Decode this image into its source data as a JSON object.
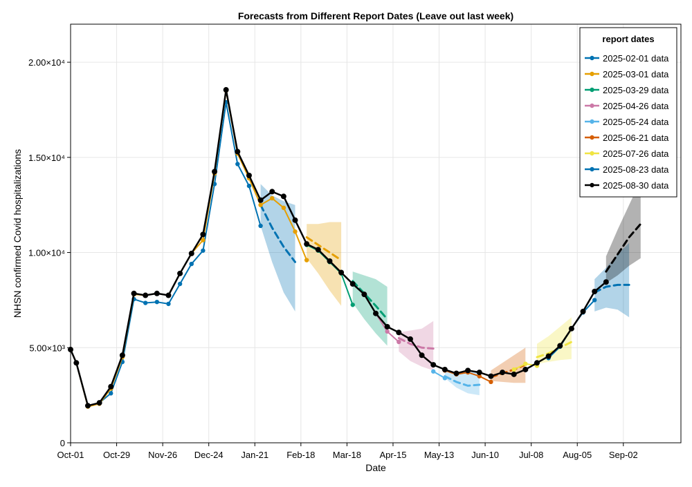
{
  "chart_data": {
    "type": "line",
    "title": "Forecasts from Different Report Dates (Leave out last week)",
    "xlabel": "Date",
    "ylabel": "NHSN confirmed Covid hospitalizations",
    "xlim": [
      0,
      53
    ],
    "ylim": [
      0,
      22000
    ],
    "x_ticks": [
      {
        "label": "Oct-01",
        "x": 0
      },
      {
        "label": "Oct-29",
        "x": 4
      },
      {
        "label": "Nov-26",
        "x": 8
      },
      {
        "label": "Dec-24",
        "x": 12
      },
      {
        "label": "Jan-21",
        "x": 16
      },
      {
        "label": "Feb-18",
        "x": 20
      },
      {
        "label": "Mar-18",
        "x": 24
      },
      {
        "label": "Apr-15",
        "x": 28
      },
      {
        "label": "May-13",
        "x": 32
      },
      {
        "label": "Jun-10",
        "x": 36
      },
      {
        "label": "Jul-08",
        "x": 40
      },
      {
        "label": "Aug-05",
        "x": 44
      },
      {
        "label": "Sep-02",
        "x": 48
      }
    ],
    "y_ticks": [
      {
        "label": "0",
        "y": 0
      },
      {
        "label": "5.00×10³",
        "y": 5000
      },
      {
        "label": "1.00×10⁴",
        "y": 10000
      },
      {
        "label": "1.50×10⁴",
        "y": 15000
      },
      {
        "label": "2.00×10⁴",
        "y": 20000
      }
    ],
    "legend": {
      "title": "report dates",
      "placement": "top-right"
    },
    "series": [
      {
        "name": "2025-02-01 data",
        "color": "#0072B2",
        "x": [
          0,
          0.5,
          1.5,
          2.5,
          3.5,
          4.5,
          5.5,
          6.5,
          7.5,
          8.5,
          9.5,
          10.5,
          11.5,
          12.5,
          13.5,
          14.5,
          15.5,
          16.5
        ],
        "values": [
          4900,
          4200,
          1950,
          2100,
          2600,
          4250,
          7550,
          7350,
          7400,
          7300,
          8350,
          9400,
          10100,
          13600,
          17900,
          14650,
          13500,
          11400
        ],
        "forecast": {
          "x": [
            16.5,
            17.5,
            18.5,
            19.5
          ],
          "median": [
            12500,
            11300,
            10300,
            9500
          ],
          "lower": [
            11400,
            9500,
            7900,
            6900
          ],
          "upper": [
            13600,
            13000,
            12700,
            12500
          ]
        }
      },
      {
        "name": "2025-03-01 data",
        "color": "#E69F00",
        "x": [
          0,
          0.5,
          1.5,
          2.5,
          3.5,
          4.5,
          5.5,
          6.5,
          7.5,
          8.5,
          9.5,
          10.5,
          11.5,
          12.5,
          13.5,
          14.5,
          15.5,
          16.5,
          17.5,
          18.5,
          19.5,
          20.5
        ],
        "values": [
          4900,
          4200,
          1900,
          2050,
          2850,
          4500,
          7800,
          7750,
          7850,
          7750,
          8900,
          9950,
          10650,
          14150,
          18500,
          15200,
          13900,
          12500,
          12850,
          12350,
          11100,
          9600
        ],
        "forecast": {
          "x": [
            20.5,
            21.5,
            22.5,
            23.5
          ],
          "median": [
            10800,
            10400,
            10000,
            9600
          ],
          "lower": [
            9700,
            8900,
            8000,
            7200
          ],
          "upper": [
            11500,
            11500,
            11600,
            11600
          ]
        }
      },
      {
        "name": "2025-03-29 data",
        "color": "#009E73",
        "x": [
          20.5,
          21.5,
          22.5,
          23.5,
          24.5
        ],
        "values": [
          10400,
          10100,
          9500,
          8900,
          7250
        ],
        "forecast": {
          "x": [
            24.5,
            25.5,
            26.5,
            27.5
          ],
          "median": [
            8500,
            7850,
            7200,
            6500
          ],
          "lower": [
            7350,
            6500,
            5750,
            5100
          ],
          "upper": [
            9000,
            8800,
            8600,
            8200
          ]
        }
      },
      {
        "name": "2025-04-26 data",
        "color": "#CC79A7",
        "x": [
          26.5,
          27.5,
          28.5
        ],
        "values": [
          6800,
          5850,
          5300
        ],
        "forecast": {
          "x": [
            28.5,
            29.5,
            30.5,
            31.5
          ],
          "median": [
            5500,
            5200,
            5000,
            4950
          ],
          "lower": [
            4800,
            4300,
            4000,
            3800
          ],
          "upper": [
            5800,
            5900,
            6000,
            6400
          ]
        }
      },
      {
        "name": "2025-05-24 data",
        "color": "#56B4E9",
        "x": [
          31.5,
          32.5
        ],
        "values": [
          3750,
          3400
        ],
        "forecast": {
          "x": [
            32.5,
            33.5,
            34.5,
            35.5
          ],
          "median": [
            3500,
            3200,
            3000,
            3050
          ],
          "lower": [
            3400,
            2900,
            2600,
            2500
          ],
          "upper": [
            3800,
            3700,
            3700,
            3750
          ]
        }
      },
      {
        "name": "2025-06-21 data",
        "color": "#D55E00",
        "x": [
          32.5,
          33.5,
          34.5,
          35.5,
          36.5
        ],
        "values": [
          3800,
          3600,
          3700,
          3500,
          3200
        ],
        "forecast": {
          "x": [
            36.5,
            37.5,
            38.5,
            39.5
          ],
          "median": [
            3450,
            3650,
            3850,
            4100
          ],
          "lower": [
            3250,
            3200,
            3150,
            3150
          ],
          "upper": [
            3800,
            4200,
            4600,
            5000
          ]
        }
      },
      {
        "name": "2025-07-26 data",
        "color": "#F0E442",
        "x": [
          38.5,
          39.5,
          40.5
        ],
        "values": [
          3850,
          4150,
          4050
        ],
        "forecast": {
          "x": [
            40.5,
            41.5,
            42.5,
            43.5
          ],
          "median": [
            4500,
            4700,
            5000,
            5300
          ],
          "lower": [
            4150,
            4250,
            4350,
            4400
          ],
          "upper": [
            5200,
            5600,
            6100,
            6600
          ]
        }
      },
      {
        "name": "2025-08-23 data",
        "color": "#0072B2",
        "x": [
          41.5,
          42.5,
          43.5,
          44.5,
          45.5
        ],
        "values": [
          4450,
          5050,
          6000,
          6850,
          7500
        ],
        "forecast": {
          "x": [
            45.5,
            46.5,
            47.5,
            48.5
          ],
          "median": [
            7900,
            8200,
            8300,
            8300
          ],
          "lower": [
            6900,
            7100,
            7000,
            6600
          ],
          "upper": [
            8600,
            9200,
            9900,
            10500
          ]
        }
      },
      {
        "name": "2025-08-30 data",
        "color": "#000000",
        "x": [
          0,
          0.5,
          1.5,
          2.5,
          3.5,
          4.5,
          5.5,
          6.5,
          7.5,
          8.5,
          9.5,
          10.5,
          11.5,
          12.5,
          13.5,
          14.5,
          15.5,
          16.5,
          17.5,
          18.5,
          19.5,
          20.5,
          21.5,
          22.5,
          23.5,
          24.5,
          25.5,
          26.5,
          27.5,
          28.5,
          29.5,
          30.5,
          31.5,
          32.5,
          33.5,
          34.5,
          35.5,
          36.5,
          37.5,
          38.5,
          39.5,
          40.5,
          41.5,
          42.5,
          43.5,
          44.5,
          45.5,
          46.5
        ],
        "values": [
          4900,
          4200,
          1950,
          2100,
          2950,
          4600,
          7850,
          7750,
          7850,
          7750,
          8900,
          9950,
          10950,
          14250,
          18550,
          15300,
          14050,
          12750,
          13200,
          12950,
          11700,
          10450,
          10150,
          9550,
          8950,
          8350,
          7800,
          6800,
          6100,
          5800,
          5450,
          4600,
          4100,
          3850,
          3650,
          3800,
          3700,
          3500,
          3700,
          3600,
          3850,
          4200,
          4550,
          5100,
          6000,
          6900,
          7950,
          8450
        ],
        "forecast": {
          "x": [
            46.5,
            47.5,
            48.5,
            49.5
          ],
          "median": [
            9000,
            9900,
            10800,
            11500
          ],
          "lower": [
            8400,
            8800,
            9300,
            9700
          ],
          "upper": [
            9800,
            11200,
            12500,
            13800
          ]
        }
      }
    ]
  }
}
